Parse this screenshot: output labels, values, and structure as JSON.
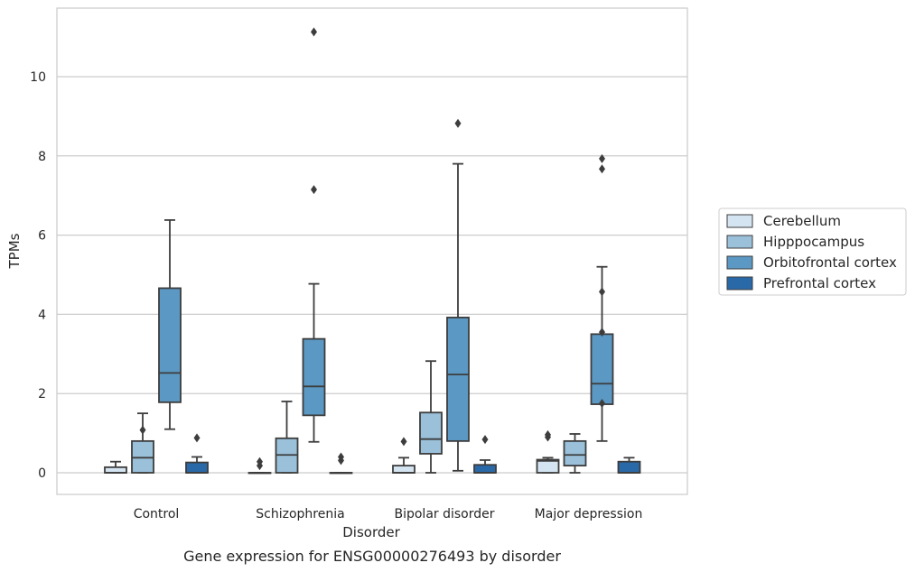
{
  "chart_data": {
    "type": "box",
    "caption": "Gene expression for ENSG00000276493 by disorder",
    "xlabel": "Disorder",
    "ylabel": "TPMs",
    "ylim": [
      -0.55,
      11.5
    ],
    "yticks": [
      0,
      2,
      4,
      6,
      8,
      10
    ],
    "grid": "horizontal",
    "legend_position": "right",
    "categories": [
      "Control",
      "Schizophrenia",
      "Bipolar disorder",
      "Major depression"
    ],
    "series": [
      {
        "name": "Cerebellum",
        "color": "#d4e4f1",
        "boxes": [
          {
            "q1": 0,
            "median": 0,
            "q3": 0.14,
            "whisker_low": 0,
            "whisker_high": 0.28,
            "outliers": []
          },
          {
            "q1": 0,
            "median": 0,
            "q3": 0,
            "whisker_low": 0,
            "whisker_high": 0,
            "outliers": [
              0.18,
              0.28
            ]
          },
          {
            "q1": 0,
            "median": 0,
            "q3": 0.18,
            "whisker_low": 0,
            "whisker_high": 0.38,
            "outliers": [
              0.79
            ]
          },
          {
            "q1": 0,
            "median": 0.3,
            "q3": 0.33,
            "whisker_low": 0,
            "whisker_high": 0.38,
            "outliers": [
              0.9,
              0.96
            ]
          }
        ]
      },
      {
        "name": "Hipppocampus",
        "color": "#9ac0da",
        "boxes": [
          {
            "q1": 0,
            "median": 0.38,
            "q3": 0.8,
            "whisker_low": 0,
            "whisker_high": 1.5,
            "outliers": [
              1.08
            ]
          },
          {
            "q1": 0,
            "median": 0.45,
            "q3": 0.87,
            "whisker_low": 0,
            "whisker_high": 1.8,
            "outliers": []
          },
          {
            "q1": 0.48,
            "median": 0.85,
            "q3": 1.52,
            "whisker_low": 0,
            "whisker_high": 2.82,
            "outliers": []
          },
          {
            "q1": 0.18,
            "median": 0.45,
            "q3": 0.8,
            "whisker_low": 0,
            "whisker_high": 0.98,
            "outliers": []
          }
        ]
      },
      {
        "name": "Orbitofrontal cortex",
        "color": "#5b98c3",
        "boxes": [
          {
            "q1": 1.78,
            "median": 2.52,
            "q3": 4.66,
            "whisker_low": 1.1,
            "whisker_high": 6.38,
            "outliers": []
          },
          {
            "q1": 1.45,
            "median": 2.18,
            "q3": 3.38,
            "whisker_low": 0.78,
            "whisker_high": 4.77,
            "outliers": [
              7.15,
              11.13
            ]
          },
          {
            "q1": 0.8,
            "median": 2.48,
            "q3": 3.92,
            "whisker_low": 0.05,
            "whisker_high": 7.8,
            "outliers": [
              8.82
            ]
          },
          {
            "q1": 1.73,
            "median": 2.25,
            "q3": 3.5,
            "whisker_low": 0.8,
            "whisker_high": 5.2,
            "outliers": [
              1.75,
              3.55,
              4.57,
              7.67,
              7.93
            ]
          }
        ]
      },
      {
        "name": "Prefrontal cortex",
        "color": "#2a69a8",
        "boxes": [
          {
            "q1": 0,
            "median": 0,
            "q3": 0.26,
            "whisker_low": 0,
            "whisker_high": 0.4,
            "outliers": [
              0.88
            ]
          },
          {
            "q1": 0,
            "median": 0,
            "q3": 0,
            "whisker_low": 0,
            "whisker_high": 0,
            "outliers": [
              0.31,
              0.4
            ]
          },
          {
            "q1": 0,
            "median": 0,
            "q3": 0.2,
            "whisker_low": 0,
            "whisker_high": 0.32,
            "outliers": [
              0.84
            ]
          },
          {
            "q1": 0,
            "median": 0,
            "q3": 0.28,
            "whisker_low": 0,
            "whisker_high": 0.38,
            "outliers": []
          }
        ]
      }
    ]
  }
}
